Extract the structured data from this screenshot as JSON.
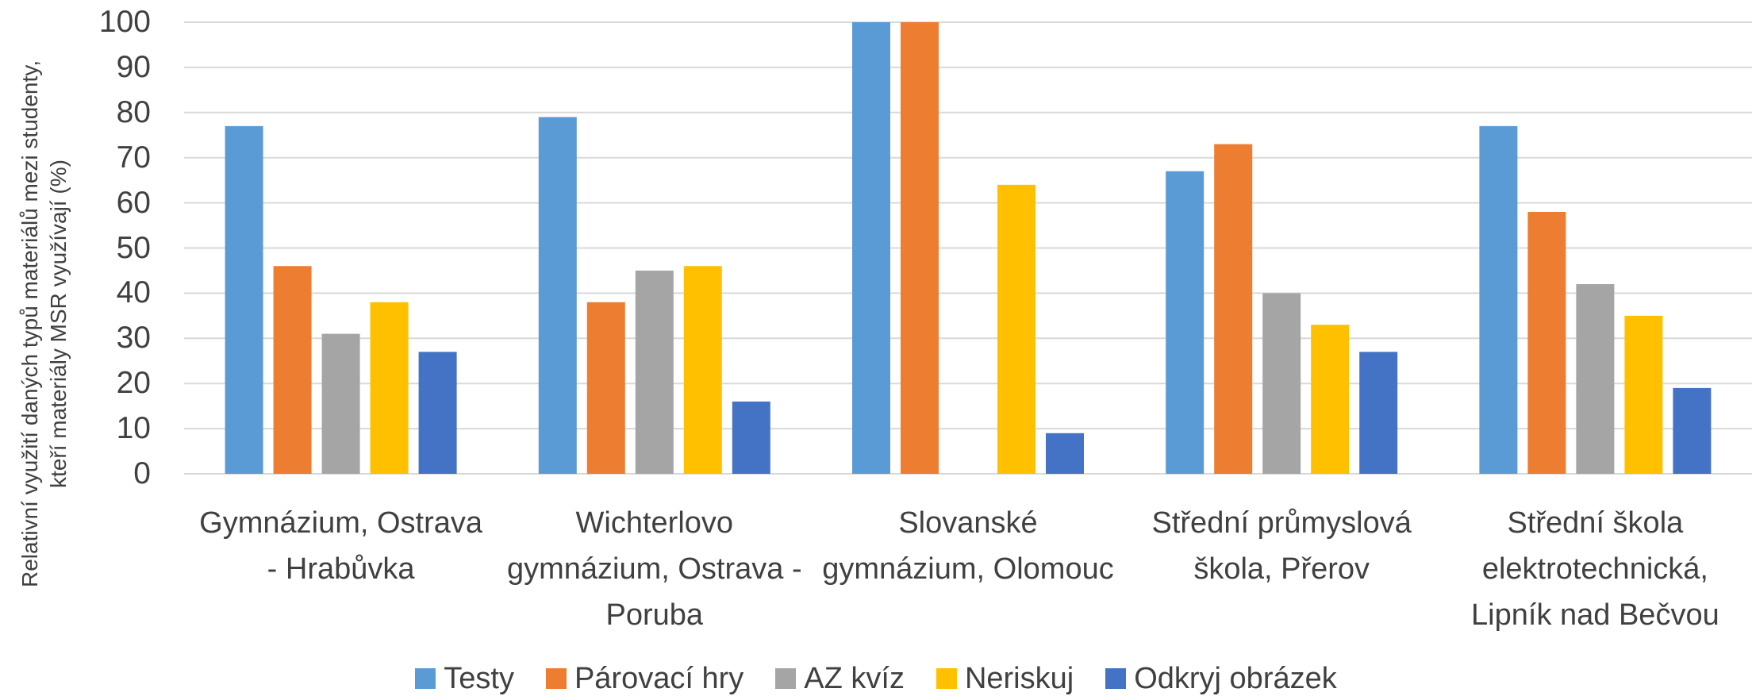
{
  "chart_data": {
    "type": "bar",
    "ylabel": "Relativní využití daných typů materiálů mezi studenty, kteří materiály MSR využívají (%)",
    "categories": [
      "Gymnázium, Ostrava - Hrabůvka",
      "Wichterlovo gymnázium, Ostrava - Poruba",
      "Slovanské gymnázium, Olomouc",
      "Střední průmyslová škola, Přerov",
      "Střední škola elektrotechnická, Lipník nad Bečvou"
    ],
    "series": [
      {
        "name": "Testy",
        "color": "#5b9bd5",
        "values": [
          77,
          79,
          100,
          67,
          77
        ]
      },
      {
        "name": "Párovací hry",
        "color": "#ed7d31",
        "values": [
          46,
          38,
          100,
          73,
          58
        ]
      },
      {
        "name": "AZ kvíz",
        "color": "#a5a5a5",
        "values": [
          31,
          45,
          0,
          40,
          42
        ]
      },
      {
        "name": "Neriskuj",
        "color": "#ffc000",
        "values": [
          38,
          46,
          64,
          33,
          35
        ]
      },
      {
        "name": "Odkryj obrázek",
        "color": "#4472c4",
        "values": [
          27,
          16,
          9,
          27,
          19
        ]
      }
    ],
    "ylim": [
      0,
      100
    ],
    "yticks": [
      0,
      10,
      20,
      30,
      40,
      50,
      60,
      70,
      80,
      90,
      100
    ],
    "grid": true,
    "legend": "bottom"
  }
}
